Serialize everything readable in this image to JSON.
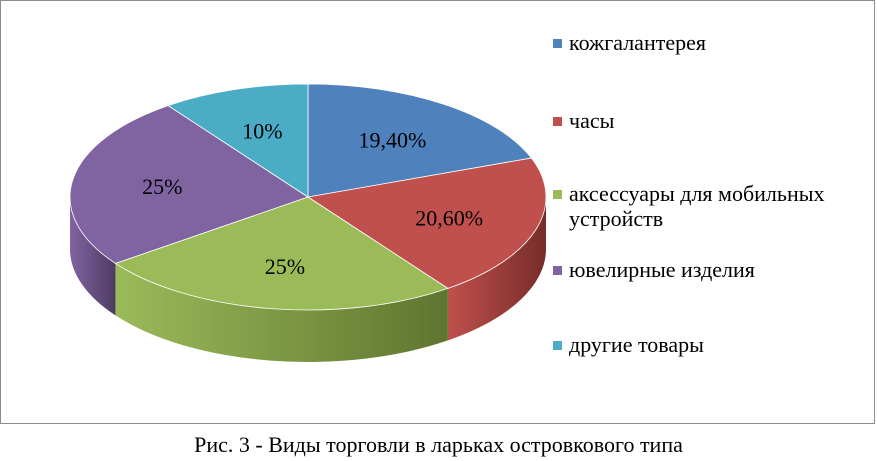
{
  "chart_data": {
    "type": "pie",
    "categories": [
      "кожгалантерея",
      "часы",
      "аксессуары для мобильных устройств",
      "ювелирные изделия",
      "другие товары"
    ],
    "values": [
      19.4,
      20.6,
      25,
      25,
      10
    ],
    "data_labels": [
      "19,40%",
      "20,60%",
      "25%",
      "25%",
      "10%"
    ],
    "colors": [
      "#4f81bd",
      "#c0504d",
      "#9bbb59",
      "#8064a2",
      "#4bacc6"
    ],
    "side_colors": [
      "#2c4d75",
      "#772c2a",
      "#5f7530",
      "#4d3b62",
      "#276a7c"
    ],
    "legend_position": "right",
    "title": ""
  },
  "caption": "Рис. 3 - Виды торговли в ларьках островкового типа"
}
